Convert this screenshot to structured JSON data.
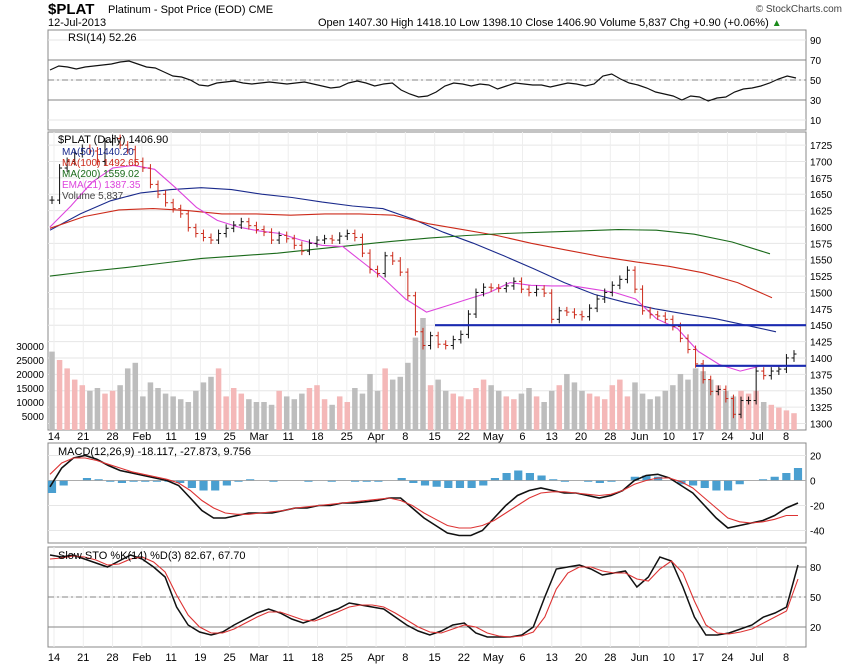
{
  "header": {
    "symbol": "$PLAT",
    "description": "Platinum - Spot Price (EOD) CME",
    "date": "12-Jul-2013",
    "ohlc": "Open 1407.30  High 1418.10  Low 1398.10  Close 1406.90  Volume 5,837  Chg +0.90 (+0.06%)",
    "trend_glyph": "▲",
    "credit": "© StockCharts.com"
  },
  "colors": {
    "ma50": "#1a2a8c",
    "ma100": "#cc2a1a",
    "ma200": "#1a6a1a",
    "ema21": "#dd44dd",
    "volume_up": "#f4b8b8",
    "volume_down": "#bdbdbd",
    "support_line": "#1a2ab0",
    "macd_hist": "#4a9fd0"
  },
  "chart_data": [
    {
      "type": "line",
      "name": "RSI panel",
      "title": "RSI(14) 52.26",
      "yticks": [
        90,
        70,
        50,
        30,
        10
      ],
      "ylim": [
        0,
        100
      ],
      "reference_lines": [
        70,
        50,
        30
      ],
      "series": [
        {
          "name": "RSI(14)",
          "values": [
            60,
            64,
            63,
            61,
            63,
            64,
            65,
            66,
            68,
            69,
            66,
            63,
            62,
            58,
            54,
            53,
            50,
            45,
            44,
            47,
            48,
            49,
            47,
            46,
            47,
            48,
            47,
            46,
            47,
            48,
            46,
            44,
            42,
            43,
            47,
            49,
            47,
            44,
            46,
            47,
            40,
            36,
            33,
            34,
            38,
            44,
            47,
            46,
            44,
            46,
            45,
            41,
            44,
            47,
            46,
            45,
            45,
            43,
            45,
            47,
            46,
            44,
            46,
            54,
            56,
            51,
            47,
            45,
            42,
            38,
            36,
            34,
            30,
            34,
            33,
            29,
            32,
            33,
            38,
            41,
            42,
            44,
            47,
            51,
            54,
            52
          ]
        }
      ]
    },
    {
      "type": "line",
      "name": "Price panel",
      "title": "$PLAT (Daily) 1406.90",
      "legend": [
        "MA(50) 1440.20",
        "MA(100) 1492.65",
        "MA(200) 1559.02",
        "EMA(21) 1387.35",
        "Volume 5,837"
      ],
      "yticks": [
        1725,
        1700,
        1675,
        1650,
        1625,
        1600,
        1575,
        1550,
        1525,
        1500,
        1475,
        1450,
        1425,
        1400,
        1375,
        1350,
        1325,
        1300
      ],
      "ylim": [
        1290,
        1745
      ],
      "volume_yticks": [
        30000,
        25000,
        20000,
        15000,
        10000,
        5000
      ],
      "volume_ylim": [
        0,
        50000
      ],
      "xticks": [
        "14",
        "21",
        "28",
        "Feb",
        "11",
        "19",
        "25",
        "Mar",
        "11",
        "18",
        "25",
        "Apr",
        "8",
        "15",
        "22",
        "May",
        "6",
        "13",
        "20",
        "28",
        "Jun",
        "10",
        "17",
        "24",
        "Jul",
        "8"
      ],
      "horizontal_lines": [
        1450,
        1388
      ],
      "series": [
        {
          "name": "Close",
          "values": [
            1641,
            1690,
            1700,
            1712,
            1720,
            1716,
            1700,
            1730,
            1735,
            1725,
            1718,
            1700,
            1690,
            1665,
            1650,
            1637,
            1628,
            1620,
            1599,
            1590,
            1584,
            1580,
            1590,
            1598,
            1603,
            1608,
            1602,
            1596,
            1592,
            1580,
            1587,
            1582,
            1572,
            1563,
            1575,
            1580,
            1582,
            1580,
            1586,
            1590,
            1584,
            1560,
            1535,
            1529,
            1556,
            1548,
            1531,
            1495,
            1440,
            1419,
            1434,
            1421,
            1419,
            1428,
            1436,
            1467,
            1500,
            1508,
            1507,
            1506,
            1510,
            1517,
            1505,
            1500,
            1505,
            1499,
            1459,
            1472,
            1470,
            1466,
            1463,
            1476,
            1490,
            1500,
            1511,
            1520,
            1534,
            1505,
            1472,
            1466,
            1464,
            1459,
            1448,
            1430,
            1413,
            1391,
            1367,
            1349,
            1352,
            1338,
            1314,
            1335,
            1335,
            1380,
            1373,
            1380,
            1383,
            1400,
            1406
          ]
        },
        {
          "name": "MA(50)",
          "values": [
            1595,
            1620,
            1640,
            1652,
            1657,
            1660,
            1657,
            1650,
            1645,
            1638,
            1632,
            1628,
            1612,
            1592,
            1575,
            1556,
            1536,
            1515,
            1497,
            1485,
            1475,
            1467,
            1460,
            1450,
            1440
          ]
        },
        {
          "name": "MA(100)",
          "values": [
            1598,
            1616,
            1626,
            1628,
            1625,
            1620,
            1620,
            1618,
            1620,
            1620,
            1618,
            1605,
            1596,
            1587,
            1575,
            1565,
            1555,
            1547,
            1540,
            1530,
            1515,
            1492
          ]
        },
        {
          "name": "MA(200)",
          "values": [
            1525,
            1532,
            1538,
            1545,
            1552,
            1556,
            1560,
            1566,
            1572,
            1578,
            1583,
            1587,
            1590,
            1592,
            1594,
            1596,
            1595,
            1589,
            1577,
            1559
          ]
        },
        {
          "name": "EMA(21)",
          "values": [
            1600,
            1632,
            1668,
            1690,
            1694,
            1688,
            1660,
            1630,
            1610,
            1600,
            1594,
            1590,
            1580,
            1572,
            1570,
            1545,
            1520,
            1490,
            1470,
            1480,
            1490,
            1500,
            1515,
            1511,
            1510,
            1510,
            1505,
            1500,
            1490,
            1460,
            1445,
            1410,
            1390,
            1380,
            1388,
            1387
          ]
        },
        {
          "name": "Volume",
          "values": [
            28000,
            25000,
            22000,
            18000,
            16000,
            14000,
            15000,
            13000,
            14000,
            16000,
            22000,
            24000,
            12000,
            17000,
            15000,
            13000,
            12000,
            11000,
            10000,
            14000,
            17000,
            19000,
            22000,
            12000,
            15000,
            13000,
            11000,
            10000,
            10000,
            9000,
            14000,
            12000,
            11000,
            13000,
            15000,
            16000,
            11000,
            9000,
            12000,
            10000,
            15000,
            13000,
            20000,
            14000,
            22000,
            18000,
            19000,
            24000,
            33000,
            40000,
            16000,
            18000,
            14000,
            13000,
            12000,
            11000,
            15000,
            18000,
            16000,
            14000,
            12000,
            11000,
            13000,
            15000,
            12000,
            10000,
            14000,
            16000,
            20000,
            17000,
            14000,
            13000,
            12000,
            11000,
            16000,
            18000,
            12000,
            17000,
            13000,
            11000,
            12000,
            14000,
            16000,
            20000,
            18000,
            22000,
            21000,
            18000,
            16000,
            14000,
            12000,
            14000,
            13000,
            14000,
            10000,
            9000,
            8000,
            7000,
            6000
          ]
        }
      ]
    },
    {
      "type": "line",
      "name": "MACD panel",
      "title": "MACD(12,26,9) -18.117, -27.873, 9.756",
      "yticks": [
        20,
        0,
        -20,
        -40
      ],
      "ylim": [
        -50,
        30
      ],
      "series": [
        {
          "name": "MACD",
          "values": [
            -5,
            10,
            18,
            20,
            17,
            12,
            8,
            6,
            4,
            2,
            0,
            -4,
            -14,
            -24,
            -30,
            -30,
            -28,
            -26,
            -26,
            -26,
            -24,
            -22,
            -22,
            -20,
            -20,
            -18,
            -18,
            -17,
            -16,
            -14,
            -14,
            -22,
            -30,
            -36,
            -42,
            -44,
            -44,
            -40,
            -30,
            -20,
            -12,
            -8,
            -6,
            -8,
            -10,
            -10,
            -12,
            -14,
            -12,
            -8,
            0,
            4,
            5,
            2,
            -4,
            -10,
            -20,
            -30,
            -38,
            -36,
            -34,
            -32,
            -28,
            -22,
            -18
          ]
        },
        {
          "name": "Signal",
          "values": [
            5,
            14,
            18,
            18,
            16,
            13,
            10,
            7,
            5,
            3,
            1,
            -2,
            -8,
            -16,
            -22,
            -26,
            -27,
            -27,
            -26,
            -25,
            -24,
            -22,
            -21,
            -20,
            -19,
            -18,
            -17,
            -16,
            -15,
            -14,
            -16,
            -20,
            -26,
            -31,
            -36,
            -38,
            -38,
            -36,
            -32,
            -26,
            -20,
            -14,
            -10,
            -9,
            -9,
            -10,
            -11,
            -12,
            -11,
            -8,
            -3,
            0,
            2,
            2,
            -1,
            -6,
            -14,
            -22,
            -30,
            -33,
            -34,
            -33,
            -31,
            -28,
            -28
          ]
        },
        {
          "name": "Histogram",
          "values": [
            -10,
            -4,
            0,
            2,
            1,
            -1,
            -2,
            -1,
            -1,
            -1,
            -1,
            -2,
            -6,
            -8,
            -8,
            -4,
            -1,
            1,
            0,
            -1,
            0,
            0,
            -1,
            0,
            -1,
            0,
            -1,
            -1,
            -1,
            0,
            2,
            -2,
            -4,
            -5,
            -6,
            -6,
            -6,
            -4,
            2,
            6,
            8,
            6,
            4,
            1,
            -1,
            0,
            -1,
            -2,
            -1,
            0,
            3,
            4,
            3,
            0,
            -3,
            -4,
            -6,
            -8,
            -8,
            -3,
            0,
            1,
            3,
            6,
            10
          ]
        }
      ]
    },
    {
      "type": "line",
      "name": "Slow Stochastic panel",
      "title": "Slow STO %K(14) %D(3) 82.67, 67.70",
      "yticks": [
        80,
        50,
        20
      ],
      "ylim": [
        0,
        100
      ],
      "reference_lines": [
        80,
        50,
        20
      ],
      "series": [
        {
          "name": "%K",
          "values": [
            92,
            90,
            92,
            88,
            84,
            80,
            86,
            92,
            88,
            80,
            70,
            40,
            22,
            15,
            12,
            15,
            22,
            28,
            34,
            38,
            34,
            28,
            24,
            28,
            34,
            38,
            44,
            42,
            40,
            38,
            30,
            22,
            16,
            12,
            16,
            22,
            24,
            14,
            10,
            10,
            10,
            12,
            20,
            50,
            78,
            80,
            82,
            78,
            72,
            74,
            76,
            60,
            70,
            90,
            86,
            60,
            30,
            12,
            12,
            14,
            18,
            22,
            30,
            34,
            40,
            82
          ]
        },
        {
          "name": "%D",
          "values": [
            88,
            89,
            91,
            90,
            87,
            82,
            83,
            88,
            90,
            85,
            75,
            52,
            32,
            20,
            14,
            14,
            18,
            24,
            30,
            35,
            35,
            31,
            27,
            26,
            30,
            35,
            40,
            42,
            42,
            40,
            34,
            27,
            20,
            15,
            14,
            18,
            22,
            20,
            14,
            11,
            10,
            11,
            15,
            30,
            58,
            74,
            80,
            80,
            76,
            74,
            74,
            68,
            66,
            78,
            86,
            74,
            46,
            22,
            14,
            13,
            15,
            18,
            24,
            30,
            36,
            68
          ]
        }
      ]
    }
  ]
}
